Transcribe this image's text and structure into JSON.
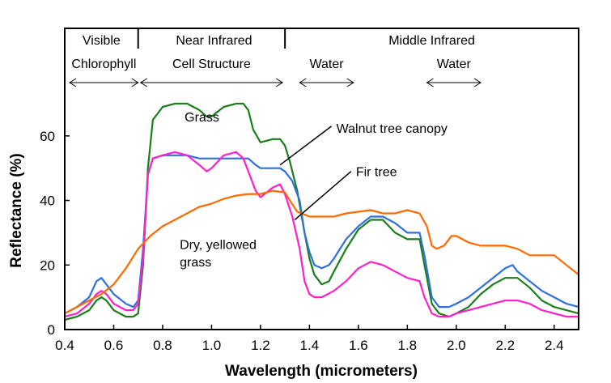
{
  "chart_data": {
    "type": "line",
    "xlabel": "Wavelength (micrometers)",
    "ylabel": "Reflectance (%)",
    "xlim": [
      0.4,
      2.5
    ],
    "ylim": [
      0,
      72
    ],
    "x_ticks": [
      "0.4",
      "0.6",
      "0.8",
      "1.0",
      "1.2",
      "1.4",
      "1.6",
      "1.8",
      "2.0",
      "2.2",
      "2.4"
    ],
    "y_ticks": [
      "0",
      "20",
      "40",
      "60"
    ],
    "grid": false,
    "bands": {
      "top_labels": [
        {
          "text": "Visible",
          "x": 0.55
        },
        {
          "text": "Near Infrared",
          "x": 1.01
        },
        {
          "text": "Middle Infrared",
          "x": 1.9
        }
      ],
      "dividers": [
        0.7,
        1.3
      ],
      "absorption": [
        {
          "text": "Chlorophyll",
          "from": 0.42,
          "to": 0.7
        },
        {
          "text": "Cell Structure",
          "from": 0.71,
          "to": 1.29
        },
        {
          "text": "Water",
          "from": 1.36,
          "to": 1.58
        },
        {
          "text": "Water",
          "from": 1.88,
          "to": 2.1
        }
      ]
    },
    "annotations": [
      {
        "text": "Grass",
        "x": 0.89,
        "y": 64.5
      },
      {
        "text": "Walnut tree canopy",
        "x": 1.51,
        "y": 61,
        "arrow_from": [
          1.49,
          63
        ],
        "arrow_to": [
          1.28,
          51
        ]
      },
      {
        "text": "Fir tree",
        "x": 1.59,
        "y": 47.5,
        "arrow_from": [
          1.57,
          49
        ],
        "arrow_to": [
          1.34,
          34
        ]
      },
      {
        "text": "Dry, yellowed",
        "x": 0.87,
        "y": 25
      },
      {
        "text": "grass",
        "x": 0.87,
        "y": 19.6
      }
    ],
    "series": [
      {
        "color": "#1a7f1a",
        "points": [
          [
            0.4,
            3
          ],
          [
            0.45,
            4
          ],
          [
            0.5,
            6
          ],
          [
            0.53,
            9
          ],
          [
            0.55,
            10
          ],
          [
            0.57,
            9
          ],
          [
            0.6,
            6
          ],
          [
            0.65,
            4
          ],
          [
            0.68,
            4
          ],
          [
            0.7,
            5
          ],
          [
            0.72,
            20
          ],
          [
            0.74,
            50
          ],
          [
            0.76,
            65
          ],
          [
            0.8,
            69
          ],
          [
            0.85,
            70
          ],
          [
            0.9,
            70
          ],
          [
            0.95,
            68
          ],
          [
            0.98,
            66
          ],
          [
            1.0,
            66
          ],
          [
            1.05,
            69
          ],
          [
            1.1,
            70
          ],
          [
            1.13,
            70
          ],
          [
            1.15,
            68
          ],
          [
            1.17,
            62
          ],
          [
            1.2,
            58
          ],
          [
            1.25,
            59
          ],
          [
            1.28,
            59
          ],
          [
            1.3,
            57
          ],
          [
            1.32,
            52
          ],
          [
            1.35,
            43
          ],
          [
            1.38,
            30
          ],
          [
            1.4,
            22
          ],
          [
            1.42,
            17
          ],
          [
            1.45,
            14
          ],
          [
            1.48,
            15
          ],
          [
            1.5,
            18
          ],
          [
            1.55,
            25
          ],
          [
            1.6,
            31
          ],
          [
            1.65,
            34
          ],
          [
            1.7,
            34
          ],
          [
            1.75,
            30
          ],
          [
            1.8,
            28
          ],
          [
            1.85,
            28
          ],
          [
            1.87,
            20
          ],
          [
            1.9,
            8
          ],
          [
            1.93,
            5
          ],
          [
            1.97,
            4
          ],
          [
            2.0,
            5
          ],
          [
            2.05,
            7
          ],
          [
            2.1,
            11
          ],
          [
            2.15,
            14
          ],
          [
            2.2,
            16
          ],
          [
            2.25,
            16
          ],
          [
            2.3,
            13
          ],
          [
            2.35,
            9
          ],
          [
            2.4,
            7
          ],
          [
            2.45,
            6
          ],
          [
            2.5,
            5
          ]
        ]
      },
      {
        "color": "#2f6fe0",
        "points": [
          [
            0.4,
            5
          ],
          [
            0.45,
            7
          ],
          [
            0.5,
            10
          ],
          [
            0.53,
            15
          ],
          [
            0.55,
            16
          ],
          [
            0.57,
            14
          ],
          [
            0.6,
            11
          ],
          [
            0.65,
            8
          ],
          [
            0.68,
            7
          ],
          [
            0.7,
            9
          ],
          [
            0.72,
            25
          ],
          [
            0.74,
            48
          ],
          [
            0.76,
            53
          ],
          [
            0.8,
            54
          ],
          [
            0.85,
            54
          ],
          [
            0.9,
            54
          ],
          [
            0.95,
            53
          ],
          [
            1.0,
            53
          ],
          [
            1.05,
            53
          ],
          [
            1.1,
            53
          ],
          [
            1.15,
            53
          ],
          [
            1.18,
            51
          ],
          [
            1.2,
            50
          ],
          [
            1.25,
            50
          ],
          [
            1.28,
            50
          ],
          [
            1.3,
            49
          ],
          [
            1.33,
            46
          ],
          [
            1.36,
            40
          ],
          [
            1.38,
            30
          ],
          [
            1.4,
            24
          ],
          [
            1.42,
            20
          ],
          [
            1.45,
            19
          ],
          [
            1.48,
            20
          ],
          [
            1.5,
            22
          ],
          [
            1.55,
            28
          ],
          [
            1.6,
            32
          ],
          [
            1.65,
            35
          ],
          [
            1.7,
            35
          ],
          [
            1.75,
            33
          ],
          [
            1.8,
            30
          ],
          [
            1.85,
            30
          ],
          [
            1.87,
            23
          ],
          [
            1.9,
            10
          ],
          [
            1.93,
            7
          ],
          [
            1.97,
            7
          ],
          [
            2.0,
            8
          ],
          [
            2.05,
            10
          ],
          [
            2.1,
            13
          ],
          [
            2.15,
            16
          ],
          [
            2.2,
            19
          ],
          [
            2.23,
            20
          ],
          [
            2.25,
            18
          ],
          [
            2.3,
            15
          ],
          [
            2.35,
            12
          ],
          [
            2.4,
            10
          ],
          [
            2.45,
            8
          ],
          [
            2.5,
            7
          ]
        ]
      },
      {
        "color": "#ff1fcc",
        "points": [
          [
            0.4,
            4
          ],
          [
            0.45,
            5
          ],
          [
            0.5,
            8
          ],
          [
            0.53,
            11
          ],
          [
            0.55,
            12
          ],
          [
            0.57,
            11
          ],
          [
            0.6,
            8
          ],
          [
            0.65,
            6
          ],
          [
            0.68,
            6
          ],
          [
            0.7,
            8
          ],
          [
            0.72,
            22
          ],
          [
            0.74,
            48
          ],
          [
            0.76,
            53
          ],
          [
            0.8,
            54
          ],
          [
            0.85,
            55
          ],
          [
            0.9,
            54
          ],
          [
            0.95,
            51
          ],
          [
            0.98,
            49
          ],
          [
            1.0,
            50
          ],
          [
            1.05,
            54
          ],
          [
            1.1,
            55
          ],
          [
            1.13,
            53
          ],
          [
            1.15,
            49
          ],
          [
            1.18,
            43
          ],
          [
            1.2,
            41
          ],
          [
            1.25,
            44
          ],
          [
            1.28,
            45
          ],
          [
            1.3,
            42
          ],
          [
            1.33,
            35
          ],
          [
            1.36,
            25
          ],
          [
            1.38,
            15
          ],
          [
            1.4,
            11
          ],
          [
            1.42,
            10
          ],
          [
            1.45,
            10
          ],
          [
            1.5,
            12
          ],
          [
            1.55,
            15
          ],
          [
            1.6,
            19
          ],
          [
            1.65,
            21
          ],
          [
            1.7,
            20
          ],
          [
            1.75,
            18
          ],
          [
            1.8,
            16
          ],
          [
            1.85,
            15
          ],
          [
            1.87,
            10
          ],
          [
            1.9,
            5
          ],
          [
            1.93,
            4
          ],
          [
            1.97,
            4
          ],
          [
            2.0,
            5
          ],
          [
            2.05,
            6
          ],
          [
            2.1,
            7
          ],
          [
            2.15,
            8
          ],
          [
            2.2,
            9
          ],
          [
            2.25,
            9
          ],
          [
            2.3,
            8
          ],
          [
            2.35,
            6
          ],
          [
            2.4,
            5
          ],
          [
            2.45,
            4
          ],
          [
            2.5,
            4
          ]
        ]
      },
      {
        "color": "#ff6a00",
        "points": [
          [
            0.4,
            5
          ],
          [
            0.45,
            7
          ],
          [
            0.5,
            9
          ],
          [
            0.55,
            11
          ],
          [
            0.6,
            14
          ],
          [
            0.65,
            19
          ],
          [
            0.7,
            25
          ],
          [
            0.75,
            29
          ],
          [
            0.8,
            32
          ],
          [
            0.85,
            34
          ],
          [
            0.9,
            36
          ],
          [
            0.95,
            38
          ],
          [
            1.0,
            39
          ],
          [
            1.05,
            40.5
          ],
          [
            1.1,
            41.5
          ],
          [
            1.15,
            42
          ],
          [
            1.2,
            42
          ],
          [
            1.25,
            43
          ],
          [
            1.3,
            42.5
          ],
          [
            1.32,
            40
          ],
          [
            1.35,
            36.5
          ],
          [
            1.4,
            35
          ],
          [
            1.45,
            35
          ],
          [
            1.5,
            35
          ],
          [
            1.55,
            36
          ],
          [
            1.6,
            36.5
          ],
          [
            1.65,
            37
          ],
          [
            1.7,
            36
          ],
          [
            1.75,
            36
          ],
          [
            1.8,
            37
          ],
          [
            1.85,
            36
          ],
          [
            1.88,
            32
          ],
          [
            1.9,
            26
          ],
          [
            1.92,
            25
          ],
          [
            1.95,
            26
          ],
          [
            1.98,
            29
          ],
          [
            2.0,
            29
          ],
          [
            2.05,
            27
          ],
          [
            2.1,
            26
          ],
          [
            2.15,
            26
          ],
          [
            2.2,
            26
          ],
          [
            2.25,
            25
          ],
          [
            2.3,
            23
          ],
          [
            2.35,
            23
          ],
          [
            2.4,
            23
          ],
          [
            2.45,
            20
          ],
          [
            2.5,
            17
          ]
        ]
      }
    ]
  }
}
